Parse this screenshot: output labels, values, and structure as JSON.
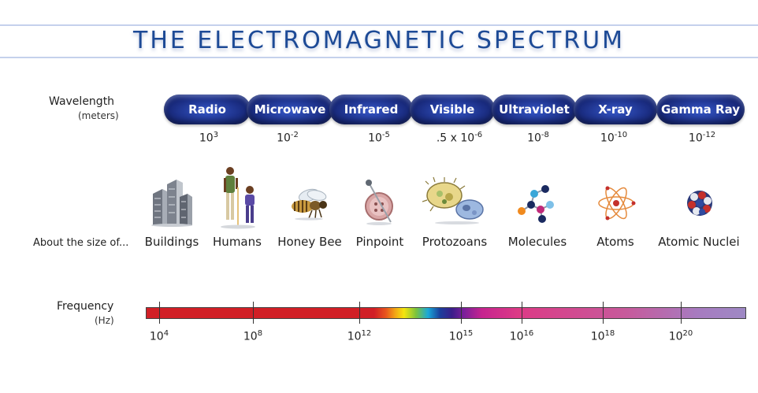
{
  "title": "THE ELECTROMAGNETIC SPECTRUM",
  "wavelength": {
    "label": "Wavelength",
    "unit": "(meters)"
  },
  "bands": [
    "Radio",
    "Microwave",
    "Infrared",
    "Visible",
    "Ultraviolet",
    "X-ray",
    "Gamma Ray"
  ],
  "wavelengths": [
    {
      "base": "10",
      "exp": "3"
    },
    {
      "base": "10",
      "exp": "-2"
    },
    {
      "base": "10",
      "exp": "-5"
    },
    {
      "base": ".5 x 10",
      "exp": "-6"
    },
    {
      "base": "10",
      "exp": "-8"
    },
    {
      "base": "10",
      "exp": "-10"
    },
    {
      "base": "10",
      "exp": "-12"
    }
  ],
  "size_label": "About the size of...",
  "sizes": [
    "Buildings",
    "Humans",
    "Honey Bee",
    "Pinpoint",
    "Protozoans",
    "Molecules",
    "Atoms",
    "Atomic Nuclei"
  ],
  "icons": [
    "buildings-icon",
    "humans-icon",
    "honey-bee-icon",
    "pinpoint-icon",
    "protozoans-icon",
    "molecules-icon",
    "atoms-icon",
    "atomic-nuclei-icon"
  ],
  "frequency": {
    "label": "Frequency",
    "unit": "(Hz)"
  },
  "frequencies": [
    {
      "base": "10",
      "exp": "4"
    },
    {
      "base": "10",
      "exp": "8"
    },
    {
      "base": "10",
      "exp": "12"
    },
    {
      "base": "10",
      "exp": "15"
    },
    {
      "base": "10",
      "exp": "16"
    },
    {
      "base": "10",
      "exp": "18"
    },
    {
      "base": "10",
      "exp": "20"
    }
  ],
  "colors": {
    "title": "#1d4a96",
    "band": "#1c2f86",
    "rule": "#b9c7e6"
  }
}
